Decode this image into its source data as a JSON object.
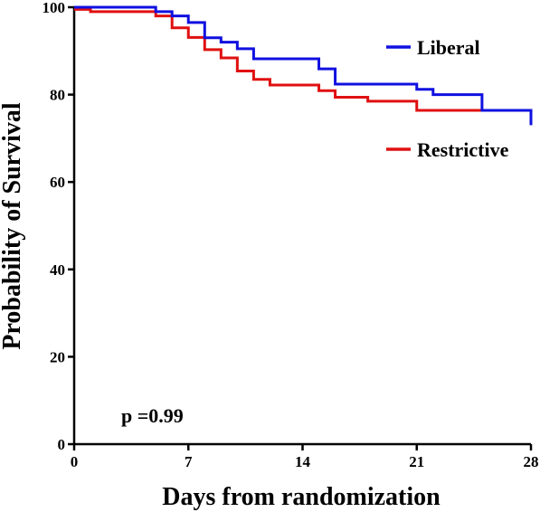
{
  "chart_data": {
    "type": "line",
    "subtype": "kaplan-meier-step",
    "xlabel": "Days from randomization",
    "ylabel": "Probability of Survival",
    "xlim": [
      0,
      28
    ],
    "ylim": [
      0,
      100
    ],
    "xticks": [
      0,
      7,
      14,
      21,
      28
    ],
    "yticks": [
      0,
      20,
      40,
      60,
      80,
      100
    ],
    "grid": false,
    "legend_placement": "right",
    "annotation": "p =0.99",
    "series": [
      {
        "name": "Liberal",
        "color": "#1010e0",
        "x": [
          0,
          5,
          6,
          7,
          8,
          9,
          10,
          11,
          15,
          16,
          21,
          22,
          25,
          28,
          28
        ],
        "y": [
          100,
          99,
          98,
          96.5,
          93,
          92,
          90.5,
          88.2,
          85.9,
          82.4,
          81.2,
          80,
          76.4,
          76.4,
          73
        ]
      },
      {
        "name": "Restrictive",
        "color": "#e01010",
        "x": [
          0,
          1,
          5,
          6,
          7,
          8,
          9,
          10,
          11,
          12,
          15,
          16,
          18,
          21,
          25
        ],
        "y": [
          99.5,
          99,
          98,
          95.3,
          93.1,
          90.3,
          88.4,
          85.4,
          83.5,
          82.2,
          80.9,
          79.4,
          78.5,
          76.4,
          76.4
        ]
      }
    ]
  }
}
